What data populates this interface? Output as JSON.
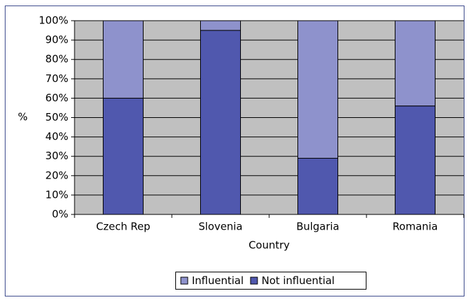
{
  "chart_data": {
    "type": "stacked_bar",
    "y_label": "%",
    "x_label": "Country",
    "categories": [
      "Czech Rep",
      "Slovenia",
      "Bulgaria",
      "Romania"
    ],
    "series": [
      {
        "name": "Not influential",
        "color": "#5058ae",
        "values": [
          60,
          95,
          29,
          56
        ]
      },
      {
        "name": "Influential",
        "color": "#8e92cc",
        "values": [
          40,
          5,
          71,
          44
        ]
      }
    ],
    "ylim": [
      0,
      100
    ],
    "yticks": [
      {
        "value": 0,
        "label": "0%"
      },
      {
        "value": 10,
        "label": "10%"
      },
      {
        "value": 20,
        "label": "20%"
      },
      {
        "value": 30,
        "label": "30%"
      },
      {
        "value": 40,
        "label": "40%"
      },
      {
        "value": 50,
        "label": "50%"
      },
      {
        "value": 60,
        "label": "60%"
      },
      {
        "value": 70,
        "label": "70%"
      },
      {
        "value": 80,
        "label": "80%"
      },
      {
        "value": 90,
        "label": "90%"
      },
      {
        "value": 100,
        "label": "100%"
      }
    ],
    "grid": true,
    "legend": "bottom"
  }
}
